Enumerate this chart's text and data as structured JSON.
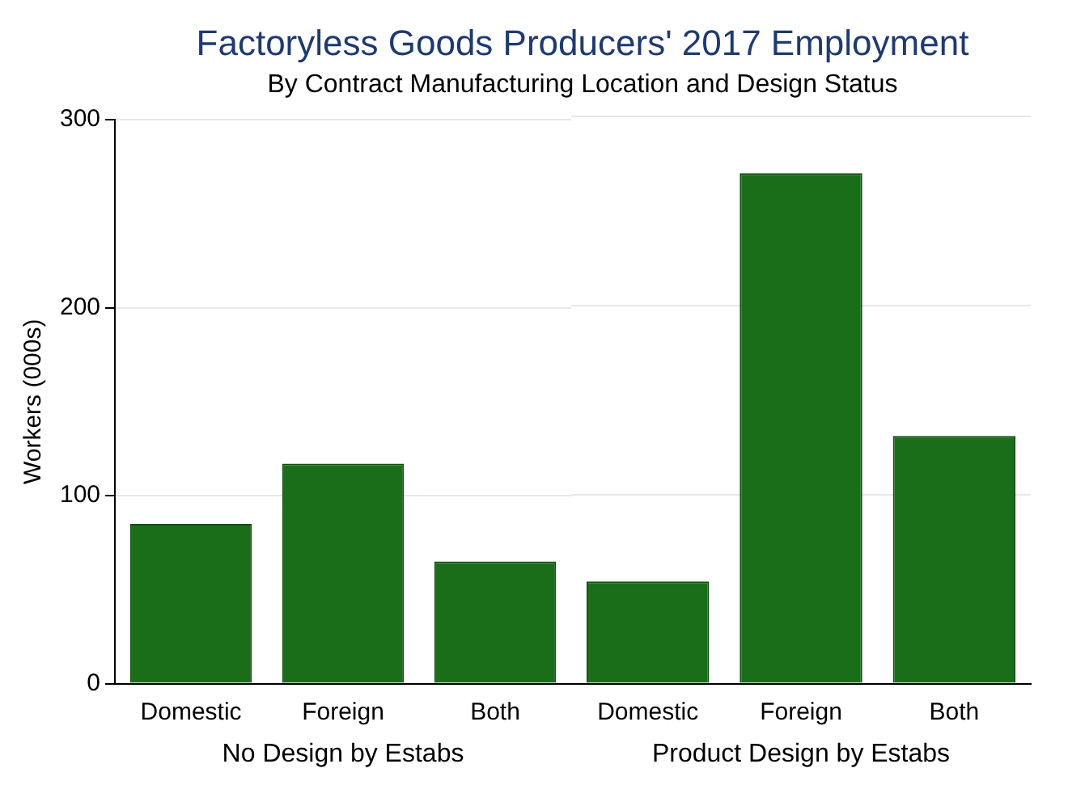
{
  "chart_data": [
    {
      "type": "bar",
      "title": "Factoryless Goods Producers' 2017 Employment",
      "subtitle": "By Contract Manufacturing Location and Design Status",
      "xlabel": "No Design by Estabs",
      "ylabel": "Workers (000s)",
      "categories": [
        "Domestic",
        "Foreign",
        "Both"
      ],
      "values": [
        85,
        117,
        65
      ],
      "color": "#1a6e1a",
      "ylim": [
        0,
        300
      ],
      "yticks": [
        0,
        100,
        200,
        300
      ],
      "grid": "y"
    },
    {
      "type": "bar",
      "xlabel": "Product Design by Estabs",
      "categories": [
        "Domestic",
        "Foreign",
        "Both"
      ],
      "values": [
        54,
        270,
        131
      ],
      "color": "#1a6e1a",
      "ylim": [
        0,
        300
      ],
      "yticks": [
        0,
        100,
        200,
        300
      ],
      "grid": "y",
      "tick_labels": "x"
    }
  ]
}
